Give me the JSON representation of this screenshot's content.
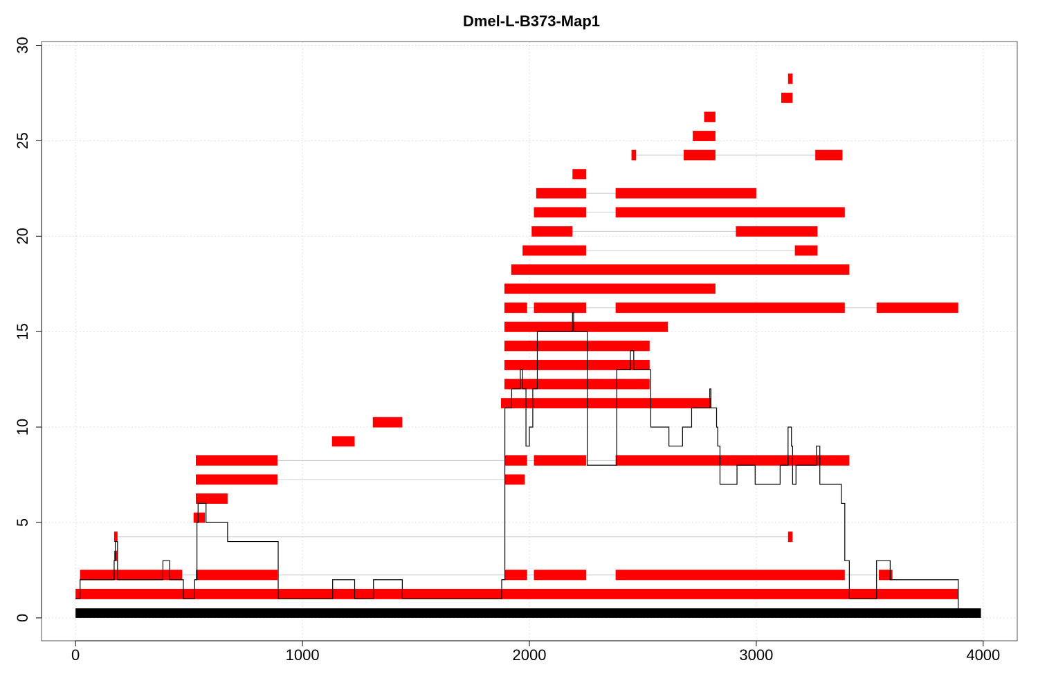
{
  "chart_data": {
    "type": "segment-coverage",
    "title": "Dmel-L-B373-Map1",
    "xlabel": "",
    "ylabel": "",
    "xlim": [
      -150,
      4150
    ],
    "ylim": [
      -1.2,
      30.2
    ],
    "grid": true,
    "xticks": [
      0,
      1000,
      2000,
      3000,
      4000
    ],
    "yticks": [
      0,
      5,
      10,
      15,
      20,
      25,
      30
    ],
    "colors": {
      "segment": "#ff0000",
      "coverage": "#000000",
      "reference": "#000000",
      "link": "#cccccc",
      "grid": "#dddddd"
    },
    "reference": {
      "start": 0,
      "end": 3990
    },
    "rows": [
      {
        "y": 1.25,
        "segments": [
          [
            0,
            20
          ],
          [
            20,
            3890
          ]
        ]
      },
      {
        "y": 2.25,
        "segments": [
          [
            20,
            470
          ],
          [
            530,
            890
          ],
          [
            1890,
            1990
          ],
          [
            2020,
            2250
          ],
          [
            2380,
            3390
          ],
          [
            3540,
            3600
          ]
        ]
      },
      {
        "y": 3.25,
        "segments": [
          [
            170,
            185
          ]
        ]
      },
      {
        "y": 4.25,
        "segments": [
          [
            170,
            185
          ],
          [
            3140,
            3160
          ]
        ]
      },
      {
        "y": 5.25,
        "segments": [
          [
            520,
            570
          ]
        ]
      },
      {
        "y": 6.25,
        "segments": [
          [
            530,
            670
          ]
        ]
      },
      {
        "y": 7.25,
        "segments": [
          [
            530,
            890
          ],
          [
            1890,
            1980
          ]
        ]
      },
      {
        "y": 8.25,
        "segments": [
          [
            530,
            890
          ],
          [
            1890,
            1990
          ],
          [
            2020,
            2250
          ],
          [
            2380,
            3410
          ]
        ]
      },
      {
        "y": 9.25,
        "segments": [
          [
            1130,
            1230
          ]
        ]
      },
      {
        "y": 10.25,
        "segments": [
          [
            1310,
            1440
          ]
        ]
      },
      {
        "y": 11.25,
        "segments": [
          [
            1875,
            2800
          ]
        ]
      },
      {
        "y": 12.25,
        "segments": [
          [
            1890,
            2530
          ]
        ]
      },
      {
        "y": 13.25,
        "segments": [
          [
            1890,
            2530
          ]
        ]
      },
      {
        "y": 14.25,
        "segments": [
          [
            1890,
            2530
          ]
        ]
      },
      {
        "y": 15.25,
        "segments": [
          [
            1890,
            2610
          ]
        ]
      },
      {
        "y": 16.25,
        "segments": [
          [
            1890,
            1990
          ],
          [
            2020,
            2250
          ],
          [
            2380,
            3390
          ],
          [
            3530,
            3890
          ]
        ]
      },
      {
        "y": 17.25,
        "segments": [
          [
            1890,
            2820
          ]
        ]
      },
      {
        "y": 18.25,
        "segments": [
          [
            1920,
            3410
          ]
        ]
      },
      {
        "y": 19.25,
        "segments": [
          [
            1970,
            2250
          ],
          [
            3170,
            3270
          ]
        ]
      },
      {
        "y": 20.25,
        "segments": [
          [
            2010,
            2190
          ],
          [
            2910,
            3270
          ]
        ]
      },
      {
        "y": 21.25,
        "segments": [
          [
            2020,
            2250
          ],
          [
            2380,
            3390
          ]
        ]
      },
      {
        "y": 22.25,
        "segments": [
          [
            2030,
            2250
          ],
          [
            2380,
            3000
          ]
        ]
      },
      {
        "y": 23.25,
        "segments": [
          [
            2190,
            2250
          ]
        ]
      },
      {
        "y": 24.25,
        "segments": [
          [
            2450,
            2470
          ],
          [
            2680,
            2820
          ],
          [
            3260,
            3380
          ]
        ]
      },
      {
        "y": 25.25,
        "segments": [
          [
            2720,
            2820
          ]
        ]
      },
      {
        "y": 26.25,
        "segments": [
          [
            2770,
            2820
          ]
        ]
      },
      {
        "y": 27.25,
        "segments": [
          [
            3110,
            3160
          ]
        ]
      },
      {
        "y": 28.25,
        "segments": [
          [
            3140,
            3160
          ]
        ]
      }
    ],
    "coverage": [
      [
        0,
        1
      ],
      [
        20,
        2
      ],
      [
        170,
        3
      ],
      [
        175,
        4
      ],
      [
        180,
        4
      ],
      [
        185,
        2
      ],
      [
        380,
        2
      ],
      [
        385,
        3
      ],
      [
        410,
        3
      ],
      [
        415,
        2
      ],
      [
        470,
        2
      ],
      [
        475,
        1
      ],
      [
        520,
        1
      ],
      [
        525,
        2
      ],
      [
        530,
        2
      ],
      [
        535,
        5
      ],
      [
        540,
        6
      ],
      [
        570,
        6
      ],
      [
        575,
        5
      ],
      [
        665,
        5
      ],
      [
        670,
        4
      ],
      [
        890,
        4
      ],
      [
        893,
        1
      ],
      [
        1130,
        1
      ],
      [
        1133,
        2
      ],
      [
        1225,
        2
      ],
      [
        1230,
        1
      ],
      [
        1310,
        1
      ],
      [
        1313,
        2
      ],
      [
        1435,
        2
      ],
      [
        1440,
        1
      ],
      [
        1875,
        1
      ],
      [
        1878,
        2
      ],
      [
        1890,
        2
      ],
      [
        1892,
        11
      ],
      [
        1918,
        11
      ],
      [
        1922,
        12
      ],
      [
        1955,
        12
      ],
      [
        1960,
        13
      ],
      [
        1970,
        12
      ],
      [
        1985,
        9
      ],
      [
        1995,
        9
      ],
      [
        2000,
        10
      ],
      [
        2010,
        10
      ],
      [
        2015,
        12
      ],
      [
        2030,
        12
      ],
      [
        2035,
        15
      ],
      [
        2185,
        15
      ],
      [
        2190,
        16
      ],
      [
        2195,
        15
      ],
      [
        2250,
        15
      ],
      [
        2255,
        8
      ],
      [
        2380,
        8
      ],
      [
        2385,
        13
      ],
      [
        2440,
        13
      ],
      [
        2445,
        14
      ],
      [
        2455,
        14
      ],
      [
        2460,
        13
      ],
      [
        2530,
        13
      ],
      [
        2535,
        10
      ],
      [
        2610,
        10
      ],
      [
        2615,
        9
      ],
      [
        2670,
        9
      ],
      [
        2675,
        10
      ],
      [
        2710,
        10
      ],
      [
        2715,
        11
      ],
      [
        2790,
        11
      ],
      [
        2795,
        12
      ],
      [
        2800,
        11
      ],
      [
        2820,
        11
      ],
      [
        2825,
        10
      ],
      [
        2830,
        9
      ],
      [
        2840,
        7
      ],
      [
        2910,
        7
      ],
      [
        2915,
        8
      ],
      [
        2990,
        8
      ],
      [
        2995,
        7
      ],
      [
        3100,
        7
      ],
      [
        3105,
        8
      ],
      [
        3135,
        8
      ],
      [
        3140,
        10
      ],
      [
        3150,
        10
      ],
      [
        3155,
        9
      ],
      [
        3160,
        7
      ],
      [
        3170,
        7
      ],
      [
        3175,
        8
      ],
      [
        3260,
        8
      ],
      [
        3265,
        9
      ],
      [
        3275,
        9
      ],
      [
        3280,
        7
      ],
      [
        3370,
        7
      ],
      [
        3375,
        6
      ],
      [
        3385,
        6
      ],
      [
        3390,
        3
      ],
      [
        3405,
        3
      ],
      [
        3410,
        1
      ],
      [
        3525,
        1
      ],
      [
        3530,
        3
      ],
      [
        3585,
        3
      ],
      [
        3590,
        2
      ],
      [
        3885,
        2
      ],
      [
        3890,
        0
      ]
    ]
  }
}
